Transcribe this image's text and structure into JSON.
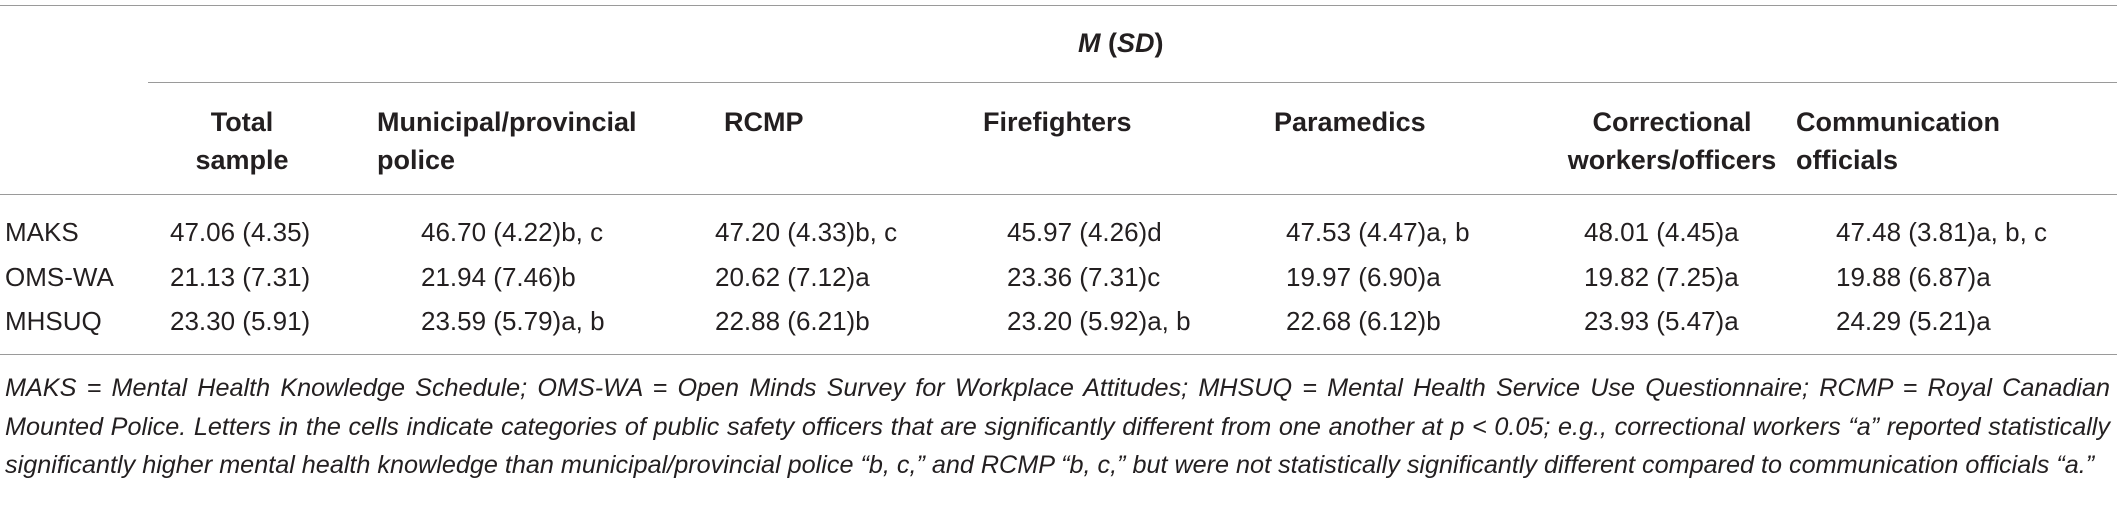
{
  "table": {
    "group_header": {
      "m": "M",
      "open": " (",
      "sd": "SD",
      "close": ")"
    },
    "columns": [
      {
        "line1": "Total",
        "line2": "sample"
      },
      {
        "line1": "Municipal/provincial",
        "line2": "police"
      },
      {
        "line1": "RCMP",
        "line2": ""
      },
      {
        "line1": "Firefighters",
        "line2": ""
      },
      {
        "line1": "Paramedics",
        "line2": ""
      },
      {
        "line1": "Correctional",
        "line2": "workers/officers"
      },
      {
        "line1": "Communication",
        "line2": "officials"
      }
    ],
    "rows": [
      {
        "label": "MAKS",
        "cells": [
          "47.06 (4.35)",
          "46.70 (4.22)b, c",
          "47.20 (4.33)b, c",
          "45.97 (4.26)d",
          "47.53 (4.47)a, b",
          "48.01 (4.45)a",
          "47.48 (3.81)a, b, c"
        ]
      },
      {
        "label": "OMS-WA",
        "cells": [
          "21.13 (7.31)",
          "21.94 (7.46)b",
          "20.62 (7.12)a",
          "23.36 (7.31)c",
          "19.97 (6.90)a",
          "19.82 (7.25)a",
          "19.88 (6.87)a"
        ]
      },
      {
        "label": "MHSUQ",
        "cells": [
          "23.30 (5.91)",
          "23.59 (5.79)a, b",
          "22.88 (6.21)b",
          "23.20 (5.92)a, b",
          "22.68 (6.12)b",
          "23.93 (5.47)a",
          "24.29 (5.21)a"
        ]
      }
    ],
    "note": "MAKS = Mental Health Knowledge Schedule; OMS-WA = Open Minds Survey for Workplace Attitudes; MHSUQ = Mental Health Service Use Questionnaire; RCMP = Royal Canadian Mounted Police. Letters in the cells indicate categories of public safety officers that are significantly different from one another at p < 0.05; e.g., correctional workers “a” reported statistically significantly higher mental health knowledge than municipal/provincial police “b, c,” and RCMP “b, c,” but were not statistically significantly different compared to communication officials “a.”"
  }
}
